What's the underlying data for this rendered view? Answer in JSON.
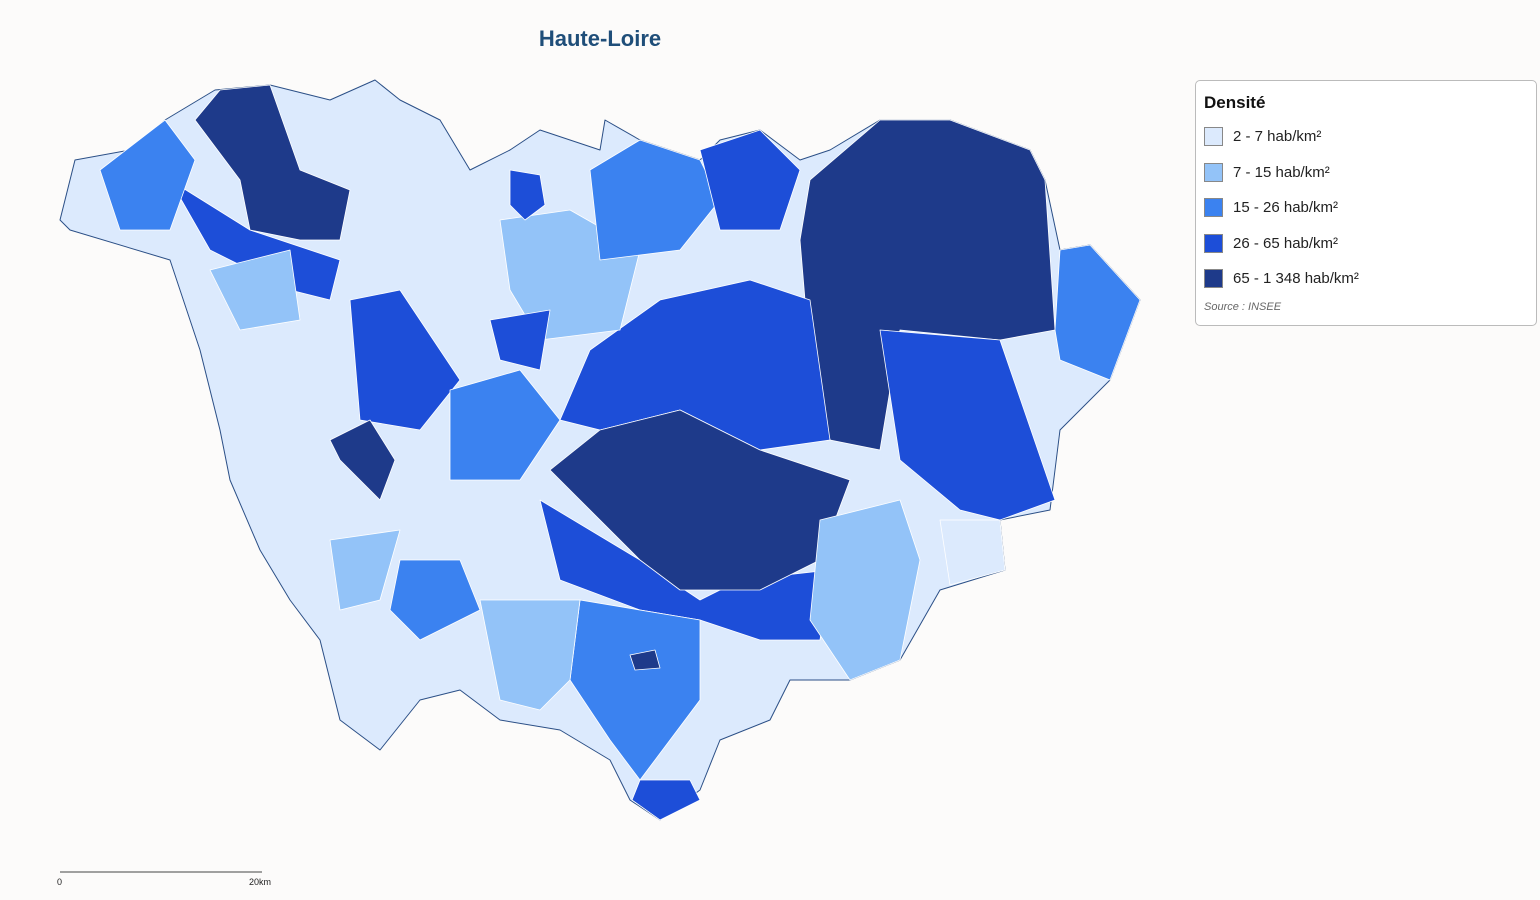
{
  "title": "Haute-Loire",
  "legend": {
    "title": "Densité",
    "items": [
      {
        "label": "2 - 7 hab/km²",
        "color": "#dceafd"
      },
      {
        "label": "7 - 15 hab/km²",
        "color": "#93c3f8"
      },
      {
        "label": "15 - 26 hab/km²",
        "color": "#3b82f0"
      },
      {
        "label": "26 - 65 hab/km²",
        "color": "#1d4ed8"
      },
      {
        "label": "65 - 1 348 hab/km²",
        "color": "#1e3a8a"
      }
    ],
    "source": "Source : INSEE"
  },
  "scale": {
    "start": "0",
    "end": "20km"
  }
}
